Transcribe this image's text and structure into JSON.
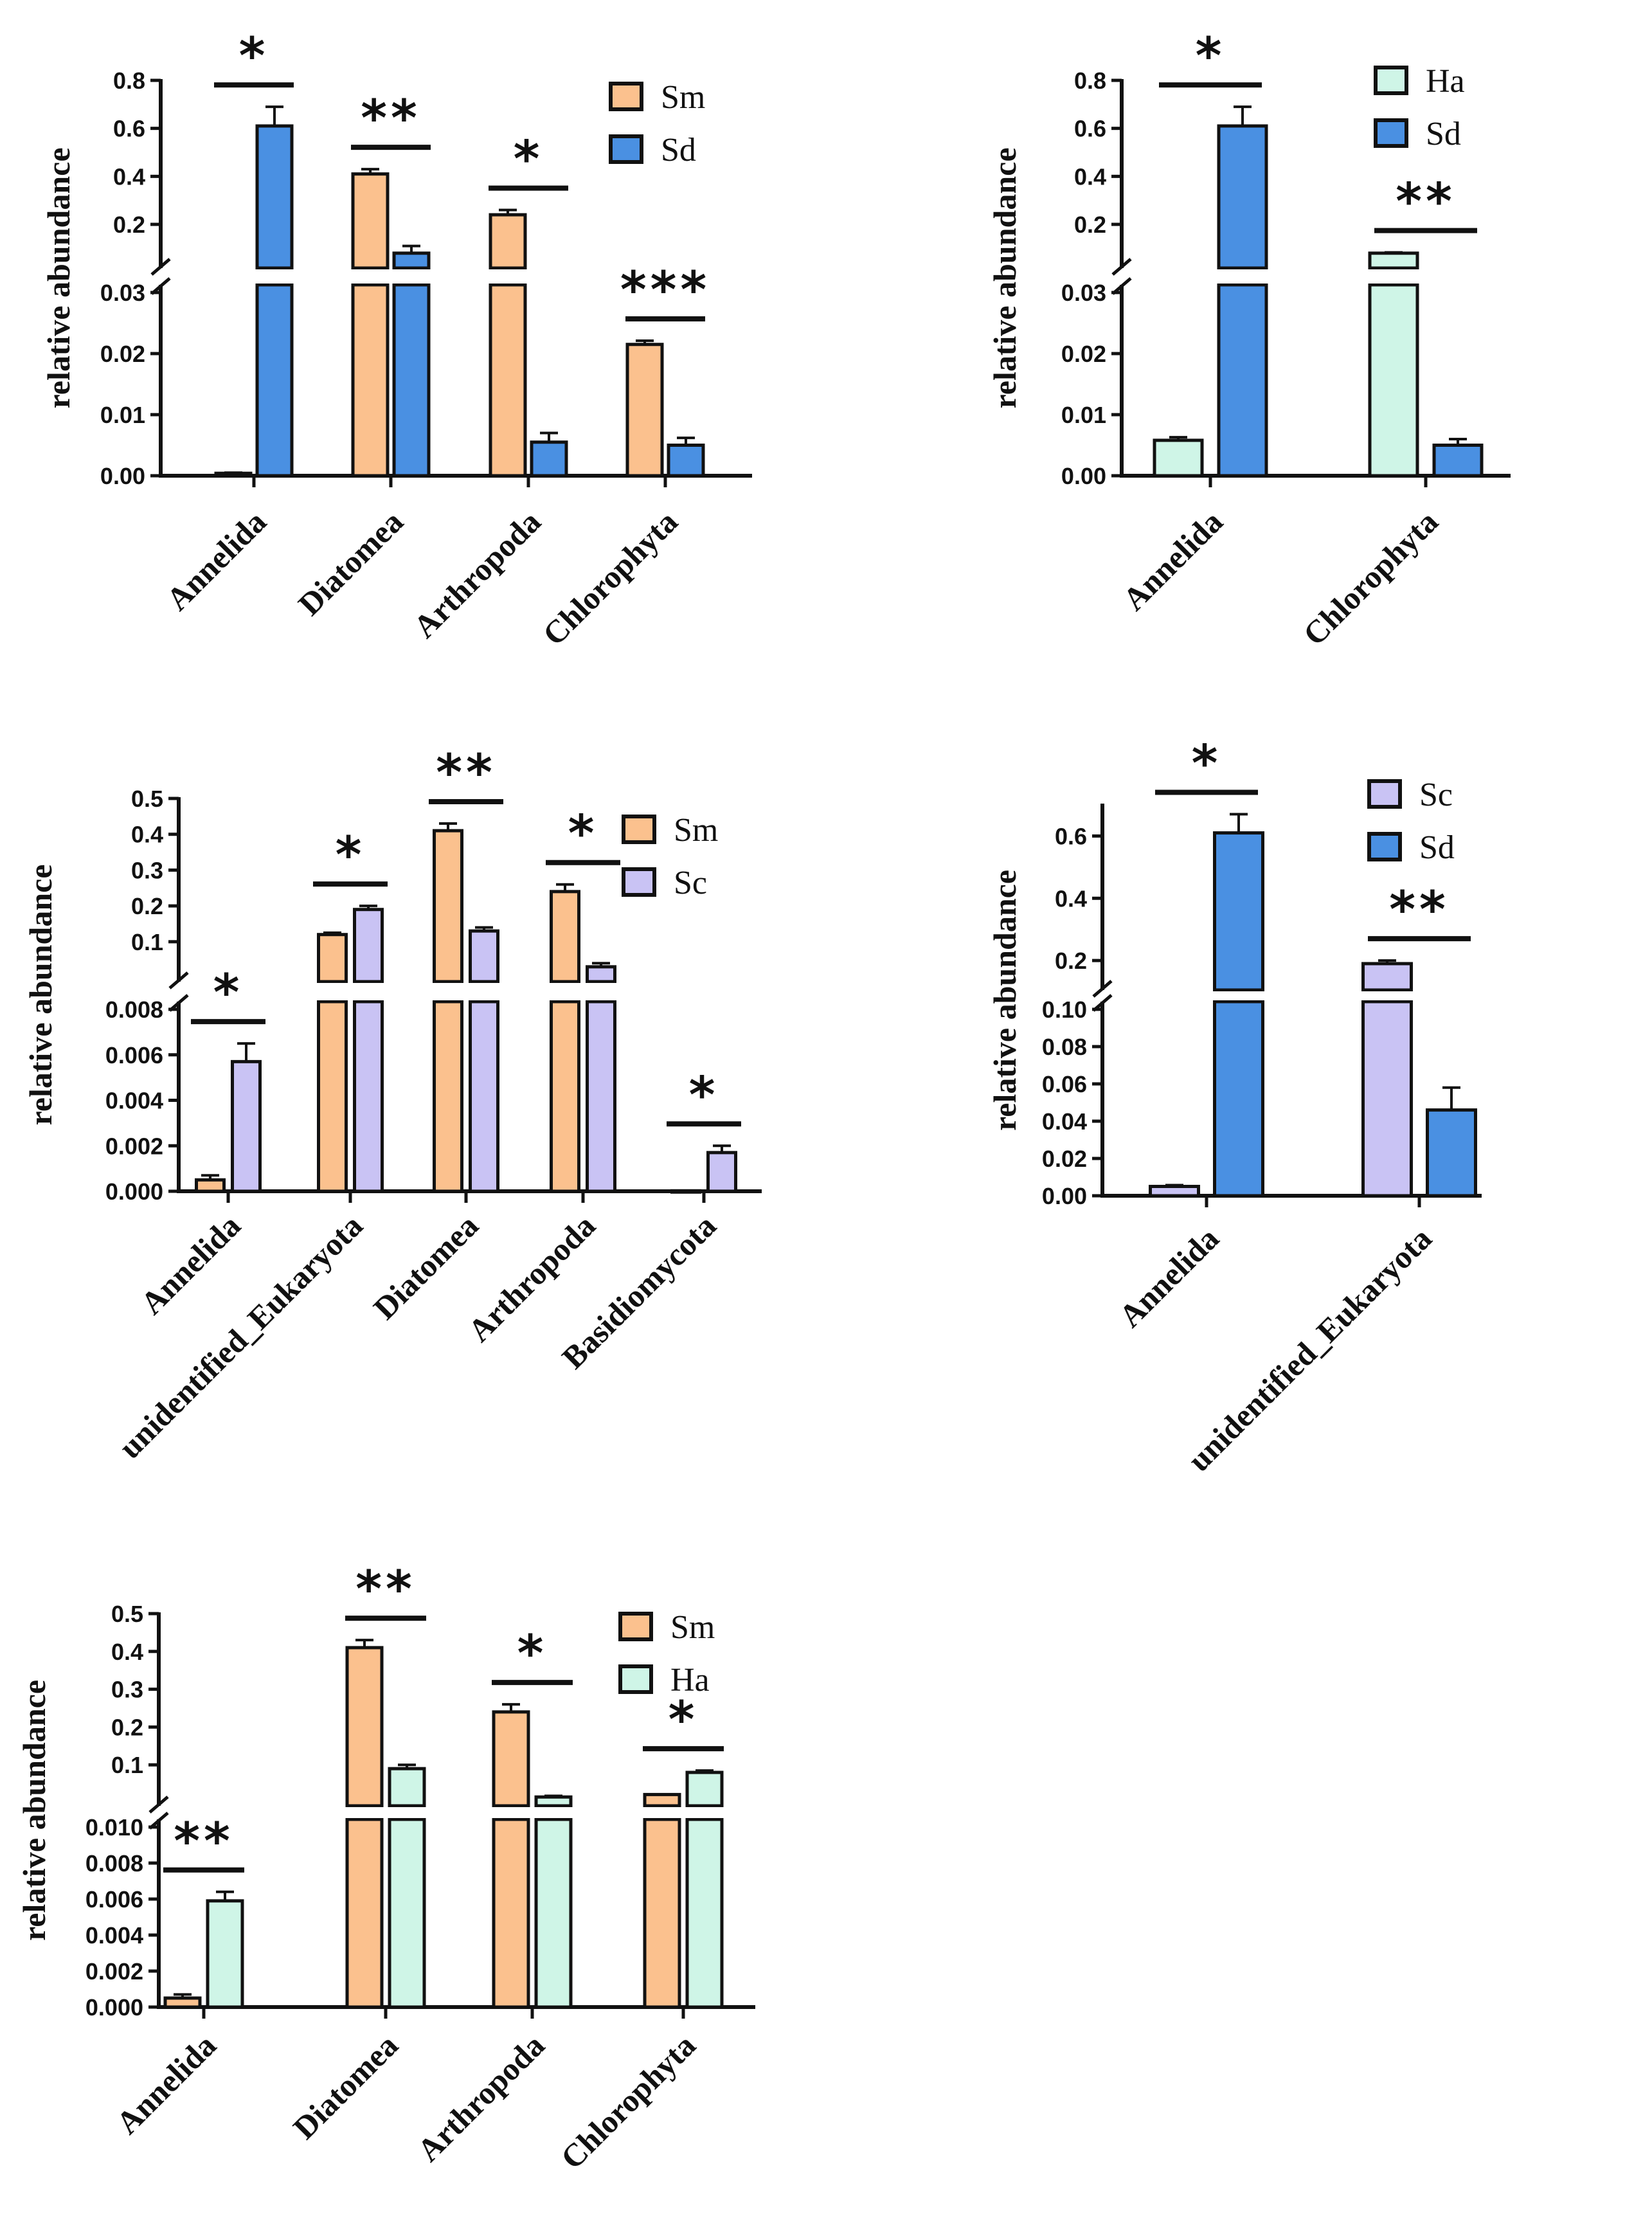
{
  "colors": {
    "Sm": "#fbc18e",
    "Sd": "#4a90e2",
    "Ha": "#cff5e7",
    "Sc": "#c9c3f4"
  },
  "chart_data": [
    {
      "type": "bar",
      "ylabel": "relative abundance",
      "categories": [
        "Annelida",
        "Diatomea",
        "Arthropoda",
        "Chlorophyta"
      ],
      "series": [
        {
          "name": "Sm",
          "values": [
            0.0004,
            0.41,
            0.24,
            0.0215
          ],
          "errors": [
            0.0001,
            0.02,
            0.02,
            0.0006
          ]
        },
        {
          "name": "Sd",
          "values": [
            0.61,
            0.08,
            0.0055,
            0.005
          ],
          "errors": [
            0.08,
            0.03,
            0.0015,
            0.0012
          ]
        }
      ],
      "significance": [
        "*",
        "**",
        "*",
        "***"
      ],
      "broken_axis": {
        "lower": [
          0,
          0.03
        ],
        "upper": [
          0.05,
          0.8
        ]
      },
      "lower_ticks": [
        "0.00",
        "0.01",
        "0.02",
        "0.03"
      ],
      "upper_ticks": [
        "0.2",
        "0.4",
        "0.6",
        "0.8"
      ],
      "legend": [
        "Sm",
        "Sd"
      ]
    },
    {
      "type": "bar",
      "ylabel": "relative abundance",
      "categories": [
        "Annelida",
        "Chlorophyta"
      ],
      "series": [
        {
          "name": "Ha",
          "values": [
            0.0058,
            0.08
          ],
          "errors": [
            0.0005,
            0.003
          ]
        },
        {
          "name": "Sd",
          "values": [
            0.61,
            0.005
          ],
          "errors": [
            0.08,
            0.001
          ]
        }
      ],
      "significance": [
        "*",
        "**"
      ],
      "broken_axis": {
        "lower": [
          0,
          0.03
        ],
        "upper": [
          0.05,
          0.8
        ]
      },
      "lower_ticks": [
        "0.00",
        "0.01",
        "0.02",
        "0.03"
      ],
      "upper_ticks": [
        "0.2",
        "0.4",
        "0.6",
        "0.8"
      ],
      "legend": [
        "Ha",
        "Sd"
      ]
    },
    {
      "type": "bar",
      "ylabel": "relative abundance",
      "categories": [
        "Annelida",
        "unidentified_Eukaryota",
        "Diatomea",
        "Arthropoda",
        "Basidiomycota"
      ],
      "series": [
        {
          "name": "Sm",
          "values": [
            0.0005,
            0.12,
            0.41,
            0.24,
            2e-05
          ],
          "errors": [
            0.0002,
            0.005,
            0.02,
            0.02,
            1e-05
          ]
        },
        {
          "name": "Sc",
          "values": [
            0.0057,
            0.19,
            0.13,
            0.03,
            0.0017
          ],
          "errors": [
            0.0008,
            0.01,
            0.01,
            0.01,
            0.0003
          ]
        }
      ],
      "significance": [
        "*",
        "*",
        "**",
        "*",
        "*"
      ],
      "broken_axis": {
        "lower": [
          0,
          0.008
        ],
        "upper": [
          0.01,
          0.5
        ]
      },
      "lower_ticks": [
        "0.000",
        "0.002",
        "0.004",
        "0.006",
        "0.008"
      ],
      "upper_ticks": [
        "0.1",
        "0.2",
        "0.3",
        "0.4",
        "0.5"
      ],
      "legend": [
        "Sm",
        "Sc"
      ]
    },
    {
      "type": "bar",
      "ylabel": "relative abundance",
      "categories": [
        "Annelida",
        "unidentified_Eukaryota"
      ],
      "series": [
        {
          "name": "Sc",
          "values": [
            0.005,
            0.19
          ],
          "errors": [
            0.0007,
            0.01
          ]
        },
        {
          "name": "Sd",
          "values": [
            0.61,
            0.046
          ],
          "errors": [
            0.06,
            0.012
          ]
        }
      ],
      "significance": [
        "*",
        "**"
      ],
      "broken_axis": {
        "lower": [
          0,
          0.1
        ],
        "upper": [
          0.13,
          0.7
        ]
      },
      "lower_ticks": [
        "0.00",
        "0.02",
        "0.04",
        "0.06",
        "0.08",
        "0.10"
      ],
      "upper_ticks": [
        "0.2",
        "0.4",
        "0.6"
      ],
      "legend": [
        "Sc",
        "Sd"
      ]
    },
    {
      "type": "bar",
      "ylabel": "relative abundance",
      "categories": [
        "Annelida",
        "Diatomea",
        "Arthropoda",
        "Chlorophyta"
      ],
      "series": [
        {
          "name": "Sm",
          "values": [
            0.0005,
            0.41,
            0.24,
            0.0215
          ],
          "errors": [
            0.0002,
            0.02,
            0.02,
            0.0006
          ]
        },
        {
          "name": "Ha",
          "values": [
            0.0059,
            0.09,
            0.015,
            0.08
          ],
          "errors": [
            0.0005,
            0.01,
            0.003,
            0.005
          ]
        }
      ],
      "significance": [
        "**",
        "**",
        "*",
        "*"
      ],
      "broken_axis": {
        "lower": [
          0,
          0.01
        ],
        "upper": [
          0.012,
          0.5
        ]
      },
      "lower_ticks": [
        "0.000",
        "0.002",
        "0.004",
        "0.006",
        "0.008",
        "0.010"
      ],
      "upper_ticks": [
        "0.1",
        "0.2",
        "0.3",
        "0.4",
        "0.5"
      ],
      "legend": [
        "Sm",
        "Ha"
      ]
    }
  ]
}
